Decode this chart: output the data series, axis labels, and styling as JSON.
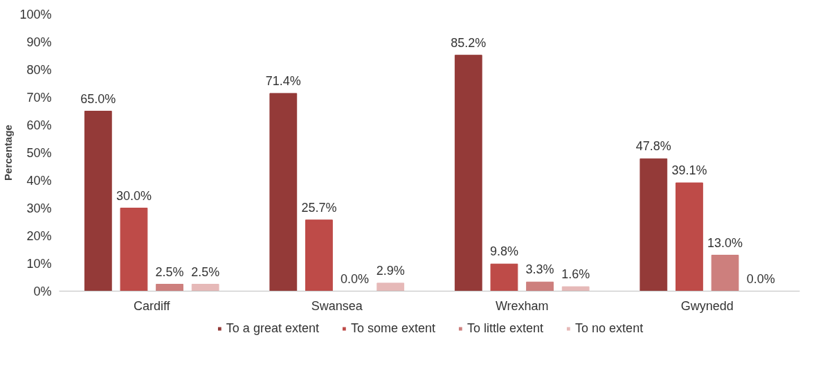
{
  "chart_data": {
    "type": "bar",
    "ylabel": "Percentage",
    "categories": [
      "Cardiff",
      "Swansea",
      "Wrexham",
      "Gwynedd"
    ],
    "series": [
      {
        "name": "To a great extent",
        "color": "#943a38",
        "values": [
          65.0,
          71.4,
          85.2,
          47.8
        ],
        "value_labels": [
          "65.0%",
          "71.4%",
          "85.2%",
          "47.8%"
        ]
      },
      {
        "name": "To some extent",
        "color": "#be4b48",
        "values": [
          30.0,
          25.7,
          9.8,
          39.1
        ],
        "value_labels": [
          "30.0%",
          "25.7%",
          "9.8%",
          "39.1%"
        ]
      },
      {
        "name": "To little extent",
        "color": "#cd7f7d",
        "values": [
          2.5,
          0.0,
          3.3,
          13.0
        ],
        "value_labels": [
          "2.5%",
          "0.0%",
          "3.3%",
          "13.0%"
        ]
      },
      {
        "name": "To no extent",
        "color": "#e6b9b8",
        "values": [
          2.5,
          2.9,
          1.6,
          0.0
        ],
        "value_labels": [
          "2.5%",
          "2.9%",
          "1.6%",
          "0.0%"
        ]
      }
    ],
    "ylim": [
      0,
      100
    ],
    "yticks": [
      {
        "value": 0,
        "label": "0%"
      },
      {
        "value": 10,
        "label": "10%"
      },
      {
        "value": 20,
        "label": "20%"
      },
      {
        "value": 30,
        "label": "30%"
      },
      {
        "value": 40,
        "label": "40%"
      },
      {
        "value": 50,
        "label": "50%"
      },
      {
        "value": 60,
        "label": "60%"
      },
      {
        "value": 70,
        "label": "70%"
      },
      {
        "value": 80,
        "label": "80%"
      },
      {
        "value": 90,
        "label": "90%"
      },
      {
        "value": 100,
        "label": "100%"
      }
    ],
    "grid": false,
    "legend": "bottom"
  }
}
